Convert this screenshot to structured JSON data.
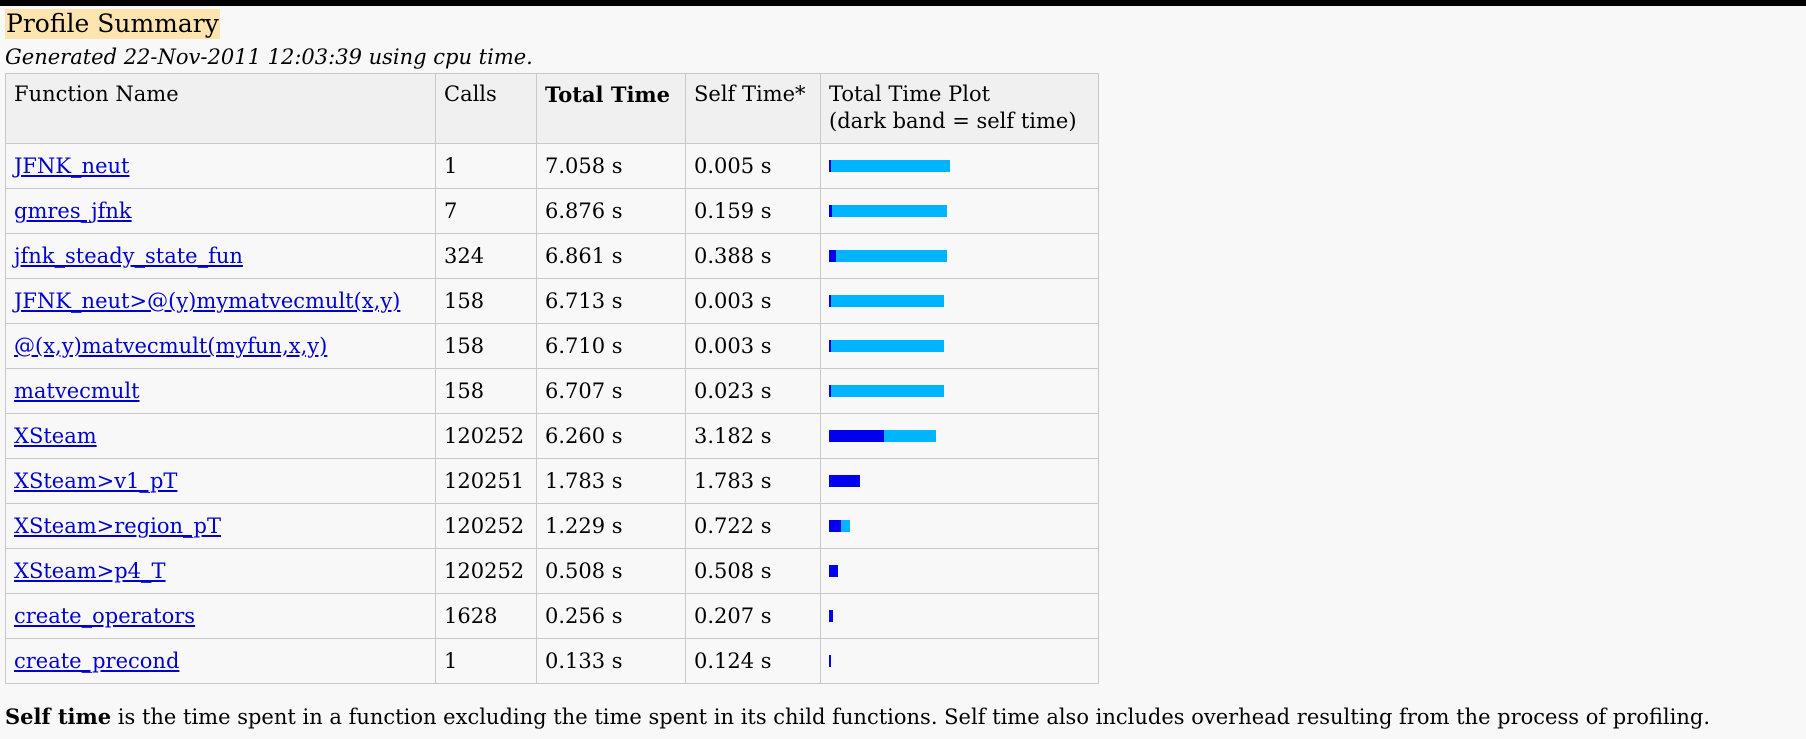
{
  "title": "Profile Summary",
  "generated": "Generated 22-Nov-2011 12:03:39 using cpu time.",
  "table": {
    "headers": {
      "function_name": "Function Name",
      "calls": "Calls",
      "total_time": "Total Time",
      "self_time": "Self Time*",
      "plot_line1": "Total Time Plot",
      "plot_line2": "(dark band = self time)"
    },
    "max_total": 7.058,
    "rows": [
      {
        "name": "JFNK_neut",
        "calls": "1",
        "total": "7.058 s",
        "self": "0.005 s",
        "total_val": 7.058,
        "self_val": 0.005
      },
      {
        "name": "gmres_jfnk",
        "calls": "7",
        "total": "6.876 s",
        "self": "0.159 s",
        "total_val": 6.876,
        "self_val": 0.159
      },
      {
        "name": "jfnk_steady_state_fun",
        "calls": "324",
        "total": "6.861 s",
        "self": "0.388 s",
        "total_val": 6.861,
        "self_val": 0.388
      },
      {
        "name": "JFNK_neut>@(y)mymatvecmult(x,y)",
        "calls": "158",
        "total": "6.713 s",
        "self": "0.003 s",
        "total_val": 6.713,
        "self_val": 0.003
      },
      {
        "name": "@(x,y)matvecmult(myfun,x,y)",
        "calls": "158",
        "total": "6.710 s",
        "self": "0.003 s",
        "total_val": 6.71,
        "self_val": 0.003
      },
      {
        "name": "matvecmult",
        "calls": "158",
        "total": "6.707 s",
        "self": "0.023 s",
        "total_val": 6.707,
        "self_val": 0.023
      },
      {
        "name": "XSteam",
        "calls": "120252",
        "total": "6.260 s",
        "self": "3.182 s",
        "total_val": 6.26,
        "self_val": 3.182
      },
      {
        "name": "XSteam>v1_pT",
        "calls": "120251",
        "total": "1.783 s",
        "self": "1.783 s",
        "total_val": 1.783,
        "self_val": 1.783
      },
      {
        "name": "XSteam>region_pT",
        "calls": "120252",
        "total": "1.229 s",
        "self": "0.722 s",
        "total_val": 1.229,
        "self_val": 0.722
      },
      {
        "name": "XSteam>p4_T",
        "calls": "120252",
        "total": "0.508 s",
        "self": "0.508 s",
        "total_val": 0.508,
        "self_val": 0.508
      },
      {
        "name": "create_operators",
        "calls": "1628",
        "total": "0.256 s",
        "self": "0.207 s",
        "total_val": 0.256,
        "self_val": 0.207
      },
      {
        "name": "create_precond",
        "calls": "1",
        "total": "0.133 s",
        "self": "0.124 s",
        "total_val": 0.133,
        "self_val": 0.124
      }
    ]
  },
  "footer": {
    "bold": "Self time",
    "text": " is the time spent in a function excluding the time spent in its child functions. Self time also includes overhead resulting from the process of profiling."
  },
  "colors": {
    "total_bar": "#00b4ff",
    "self_bar": "#0000ee",
    "title_highlight": "#ffe4b0",
    "link": "#0000cc"
  }
}
